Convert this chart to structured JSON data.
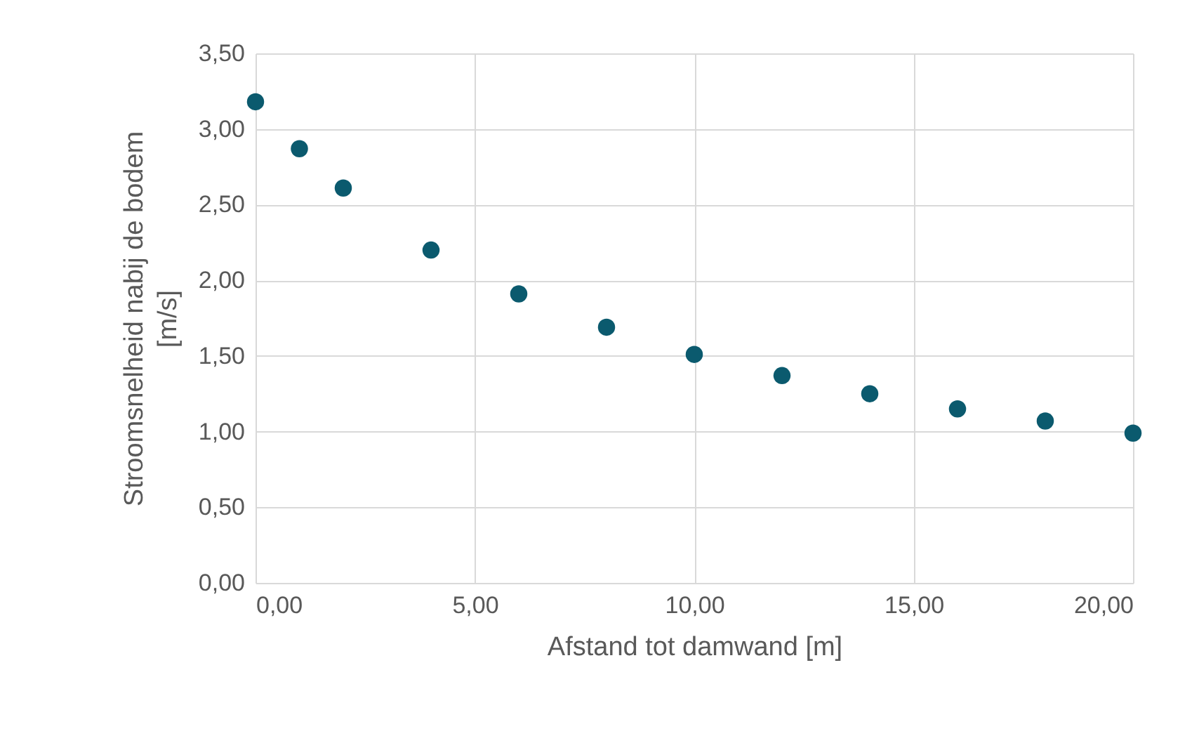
{
  "chart_data": {
    "type": "scatter",
    "xlabel": "Afstand tot damwand [m]",
    "ylabel": "Stroomsnelheid nabij de bodem [m/s]",
    "x": [
      0,
      1,
      2,
      4,
      6,
      8,
      10,
      12,
      14,
      16,
      18,
      20
    ],
    "series": [
      {
        "color": "#0b5a6e",
        "values": [
          3.18,
          2.87,
          2.61,
          2.2,
          1.91,
          1.69,
          1.51,
          1.37,
          1.25,
          1.15,
          1.07,
          0.99
        ]
      }
    ],
    "xlim": [
      0,
      20
    ],
    "xticks": [
      {
        "value": 0,
        "label": "0,00"
      },
      {
        "value": 5,
        "label": "5,00"
      },
      {
        "value": 10,
        "label": "10,00"
      },
      {
        "value": 15,
        "label": "15,00"
      },
      {
        "value": 20,
        "label": "20,00"
      }
    ],
    "ylim": [
      0,
      3.5
    ],
    "yticks": [
      {
        "value": 0,
        "label": "0,00"
      },
      {
        "value": 0.5,
        "label": "0,50"
      },
      {
        "value": 1,
        "label": "1,00"
      },
      {
        "value": 1.5,
        "label": "1,50"
      },
      {
        "value": 2,
        "label": "2,00"
      },
      {
        "value": 2.5,
        "label": "2,50"
      },
      {
        "value": 3,
        "label": "3,00"
      },
      {
        "value": 3.5,
        "label": "3,50"
      }
    ],
    "grid": true,
    "marker": "circle"
  }
}
